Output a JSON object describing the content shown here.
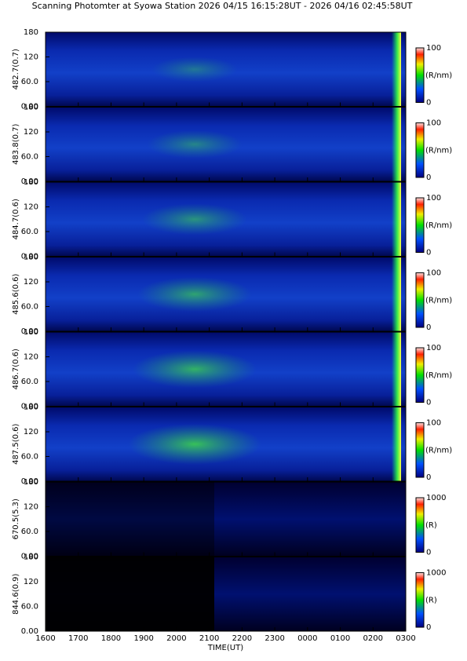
{
  "chart_data": [
    {
      "type": "heatmap",
      "title": "Scanning Photomter at Syowa Station 2026 04/15 16:15:28UT - 2026 04/16 02:45:58UT",
      "ylabel": "482.7(0.7)",
      "ylim": [
        0,
        180
      ],
      "yticks": [
        {
          "value": 0,
          "label": "0.00"
        },
        {
          "value": 60,
          "label": "60.0"
        },
        120,
        180
      ],
      "colorbar_label": "(R/nm)",
      "clim": [
        0,
        100
      ],
      "cticks": [
        0,
        100
      ]
    },
    {
      "type": "heatmap",
      "ylabel": "483.8(0.7)",
      "ylim": [
        0,
        180
      ],
      "yticks": [
        {
          "value": 0,
          "label": "0.00"
        },
        {
          "value": 60,
          "label": "60.0"
        },
        120,
        180
      ],
      "colorbar_label": "(R/nm)",
      "clim": [
        0,
        100
      ],
      "cticks": [
        0,
        100
      ]
    },
    {
      "type": "heatmap",
      "ylabel": "484.7(0.6)",
      "ylim": [
        0,
        180
      ],
      "yticks": [
        {
          "value": 0,
          "label": "0.00"
        },
        {
          "value": 60,
          "label": "60.0"
        },
        120,
        180
      ],
      "colorbar_label": "(R/nm)",
      "clim": [
        0,
        100
      ],
      "cticks": [
        0,
        100
      ]
    },
    {
      "type": "heatmap",
      "ylabel": "485.6(0.6)",
      "ylim": [
        0,
        180
      ],
      "yticks": [
        {
          "value": 0,
          "label": "0.00"
        },
        {
          "value": 60,
          "label": "60.0"
        },
        120,
        180
      ],
      "colorbar_label": "(R/nm)",
      "clim": [
        0,
        100
      ],
      "cticks": [
        0,
        100
      ]
    },
    {
      "type": "heatmap",
      "ylabel": "486.7(0.6)",
      "ylim": [
        0,
        180
      ],
      "yticks": [
        {
          "value": 0,
          "label": "0.00"
        },
        {
          "value": 60,
          "label": "60.0"
        },
        120,
        180
      ],
      "colorbar_label": "(R/nm)",
      "clim": [
        0,
        100
      ],
      "cticks": [
        0,
        100
      ]
    },
    {
      "type": "heatmap",
      "ylabel": "487.5(0.6)",
      "ylim": [
        0,
        180
      ],
      "yticks": [
        {
          "value": 0,
          "label": "0.00"
        },
        {
          "value": 60,
          "label": "60.0"
        },
        120,
        180
      ],
      "colorbar_label": "(R/nm)",
      "clim": [
        0,
        100
      ],
      "cticks": [
        0,
        100
      ]
    },
    {
      "type": "heatmap",
      "ylabel": "670.5(5.3)",
      "ylim": [
        0,
        180
      ],
      "yticks": [
        {
          "value": 0,
          "label": "0.00"
        },
        {
          "value": 60,
          "label": "60.0"
        },
        120,
        180
      ],
      "colorbar_label": "(R)",
      "clim": [
        0,
        1000
      ],
      "cticks": [
        0,
        1000
      ]
    },
    {
      "type": "heatmap",
      "ylabel": "844.6(0.9)",
      "ylim": [
        0,
        180
      ],
      "yticks": [
        {
          "value": 0,
          "label": "0.00"
        },
        {
          "value": 60,
          "label": "60.0"
        },
        120,
        180
      ],
      "colorbar_label": "(R)",
      "clim": [
        0,
        1000
      ],
      "cticks": [
        0,
        1000
      ],
      "xlabel": "TIME(UT)",
      "xlim": [
        16,
        27
      ],
      "xticks": [
        {
          "value": 16,
          "label": "1600"
        },
        {
          "value": 17,
          "label": "1700"
        },
        {
          "value": 18,
          "label": "1800"
        },
        {
          "value": 19,
          "label": "1900"
        },
        {
          "value": 20,
          "label": "2000"
        },
        {
          "value": 21,
          "label": "2100"
        },
        {
          "value": 22,
          "label": "2200"
        },
        {
          "value": 23,
          "label": "2300"
        },
        {
          "value": 24,
          "label": "0000"
        },
        {
          "value": 25,
          "label": "0100"
        },
        {
          "value": 26,
          "label": "0200"
        },
        {
          "value": 27,
          "label": "0300"
        }
      ]
    }
  ]
}
